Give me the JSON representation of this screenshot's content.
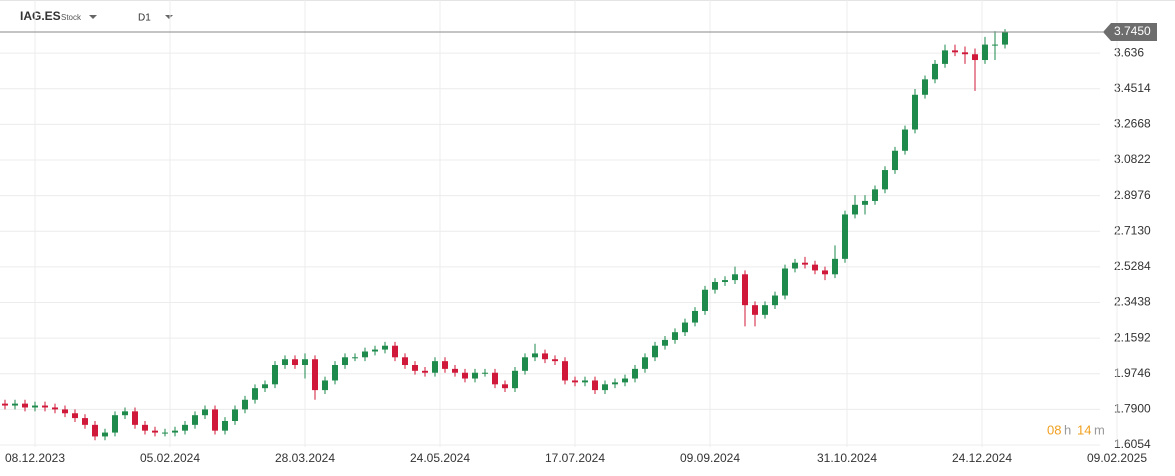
{
  "header": {
    "symbol": "IAG.ES",
    "kind": "Stock",
    "interval": "D1"
  },
  "timer": {
    "hours": "08",
    "hours_unit": "h",
    "minutes": "14",
    "minutes_unit": "m"
  },
  "chart_data": {
    "type": "candlestick",
    "up_color": "#1e8a4c",
    "down_color": "#d0193a",
    "grid": true,
    "last_price": {
      "value": 3.745,
      "label": "3.7450"
    },
    "xlim": [
      -0.5,
      109.5
    ],
    "xticks": [
      {
        "value": 3,
        "label": "08.12.2023"
      },
      {
        "value": 16.5,
        "label": "05.02.2024"
      },
      {
        "value": 30,
        "label": "28.03.2024"
      },
      {
        "value": 43.5,
        "label": "24.05.2024"
      },
      {
        "value": 57,
        "label": "17.07.2024"
      },
      {
        "value": 70.5,
        "label": "09.09.2024"
      },
      {
        "value": 84.2,
        "label": "31.10.2024"
      },
      {
        "value": 97.7,
        "label": "24.12.2024"
      },
      {
        "value": 111.2,
        "label": "09.02.2025"
      }
    ],
    "ylim": [
      1.502,
      3.911
    ],
    "yticks": [
      1.6054,
      {
        "value": 1.79,
        "label": "1.7900"
      },
      1.9746,
      2.1592,
      2.3438,
      2.5284,
      {
        "value": 2.713,
        "label": "2.7130"
      },
      2.8976,
      3.0822,
      3.2668,
      3.4514,
      3.636
    ],
    "open": [
      1.82,
      1.81,
      1.82,
      1.8,
      1.81,
      1.8,
      1.79,
      1.77,
      1.745,
      1.71,
      1.65,
      1.67,
      1.76,
      1.78,
      1.71,
      1.68,
      1.67,
      1.67,
      1.68,
      1.71,
      1.76,
      1.79,
      1.68,
      1.73,
      1.79,
      1.84,
      1.9,
      1.92,
      2.02,
      2.05,
      2.02,
      2.05,
      1.89,
      1.94,
      2.02,
      2.06,
      2.06,
      2.09,
      2.1,
      2.12,
      2.06,
      2.02,
      1.99,
      1.98,
      2.04,
      2.0,
      1.98,
      1.95,
      1.98,
      1.98,
      1.92,
      1.9,
      1.99,
      2.06,
      2.08,
      2.05,
      2.04,
      1.94,
      1.93,
      1.94,
      1.89,
      1.92,
      1.93,
      1.95,
      2.0,
      2.06,
      2.12,
      2.15,
      2.19,
      2.24,
      2.3,
      2.41,
      2.45,
      2.46,
      2.49,
      2.33,
      2.28,
      2.33,
      2.38,
      2.52,
      2.55,
      2.54,
      2.51,
      2.49,
      2.57,
      2.8,
      2.85,
      2.87,
      2.93,
      3.03,
      3.13,
      3.24,
      3.42,
      3.5,
      3.58,
      3.65,
      3.64,
      3.63,
      3.6,
      3.68,
      3.68
    ],
    "high": [
      1.84,
      1.84,
      1.84,
      1.83,
      1.83,
      1.82,
      1.81,
      1.79,
      1.765,
      1.73,
      1.69,
      1.78,
      1.8,
      1.8,
      1.73,
      1.7,
      1.69,
      1.7,
      1.73,
      1.78,
      1.81,
      1.81,
      1.75,
      1.81,
      1.86,
      1.92,
      1.94,
      2.04,
      2.07,
      2.07,
      2.08,
      2.07,
      1.96,
      2.04,
      2.08,
      2.08,
      2.11,
      2.12,
      2.14,
      2.14,
      2.08,
      2.04,
      2.01,
      2.06,
      2.06,
      2.02,
      2.0,
      2.0,
      2.0,
      2.0,
      1.94,
      2.01,
      2.08,
      2.13,
      2.1,
      2.07,
      2.06,
      1.96,
      1.96,
      1.96,
      1.94,
      1.95,
      1.97,
      2.02,
      2.08,
      2.14,
      2.17,
      2.21,
      2.26,
      2.32,
      2.43,
      2.47,
      2.48,
      2.53,
      2.51,
      2.35,
      2.35,
      2.4,
      2.54,
      2.57,
      2.58,
      2.56,
      2.53,
      2.64,
      2.82,
      2.9,
      2.9,
      2.95,
      3.05,
      3.15,
      3.26,
      3.45,
      3.52,
      3.6,
      3.68,
      3.68,
      3.67,
      3.66,
      3.72,
      3.75,
      3.76
    ],
    "low": [
      1.79,
      1.79,
      1.78,
      1.78,
      1.78,
      1.77,
      1.75,
      1.725,
      1.69,
      1.63,
      1.63,
      1.65,
      1.74,
      1.69,
      1.66,
      1.65,
      1.65,
      1.65,
      1.66,
      1.69,
      1.74,
      1.66,
      1.66,
      1.71,
      1.77,
      1.82,
      1.88,
      1.9,
      2.0,
      2.0,
      1.95,
      1.84,
      1.87,
      1.92,
      2.0,
      2.04,
      2.04,
      2.07,
      2.08,
      2.04,
      2.0,
      1.97,
      1.96,
      1.96,
      1.98,
      1.96,
      1.93,
      1.93,
      1.96,
      1.9,
      1.88,
      1.88,
      1.97,
      2.04,
      2.03,
      2.02,
      1.92,
      1.91,
      1.91,
      1.87,
      1.87,
      1.9,
      1.91,
      1.93,
      1.98,
      2.04,
      2.1,
      2.13,
      2.17,
      2.22,
      2.28,
      2.39,
      2.43,
      2.44,
      2.22,
      2.22,
      2.26,
      2.31,
      2.36,
      2.5,
      2.52,
      2.49,
      2.46,
      2.47,
      2.55,
      2.78,
      2.8,
      2.85,
      2.91,
      3.01,
      3.11,
      3.22,
      3.4,
      3.48,
      3.56,
      3.62,
      3.58,
      3.44,
      3.58,
      3.6,
      3.66
    ],
    "close": [
      1.81,
      1.82,
      1.8,
      1.81,
      1.8,
      1.79,
      1.77,
      1.745,
      1.71,
      1.65,
      1.67,
      1.76,
      1.78,
      1.71,
      1.68,
      1.67,
      1.67,
      1.68,
      1.71,
      1.76,
      1.79,
      1.68,
      1.73,
      1.79,
      1.84,
      1.9,
      1.92,
      2.02,
      2.05,
      2.02,
      2.05,
      1.89,
      1.94,
      2.02,
      2.06,
      2.06,
      2.09,
      2.1,
      2.12,
      2.06,
      2.02,
      1.99,
      1.98,
      2.04,
      2.0,
      1.98,
      1.95,
      1.98,
      1.98,
      1.92,
      1.9,
      1.99,
      2.06,
      2.08,
      2.05,
      2.04,
      1.94,
      1.93,
      1.94,
      1.89,
      1.92,
      1.93,
      1.95,
      2.0,
      2.06,
      2.12,
      2.15,
      2.19,
      2.24,
      2.3,
      2.41,
      2.45,
      2.46,
      2.49,
      2.33,
      2.28,
      2.33,
      2.38,
      2.52,
      2.55,
      2.54,
      2.51,
      2.49,
      2.57,
      2.8,
      2.85,
      2.87,
      2.93,
      3.03,
      3.13,
      3.24,
      3.42,
      3.5,
      3.58,
      3.65,
      3.64,
      3.63,
      3.6,
      3.68,
      3.68,
      3.745
    ]
  }
}
